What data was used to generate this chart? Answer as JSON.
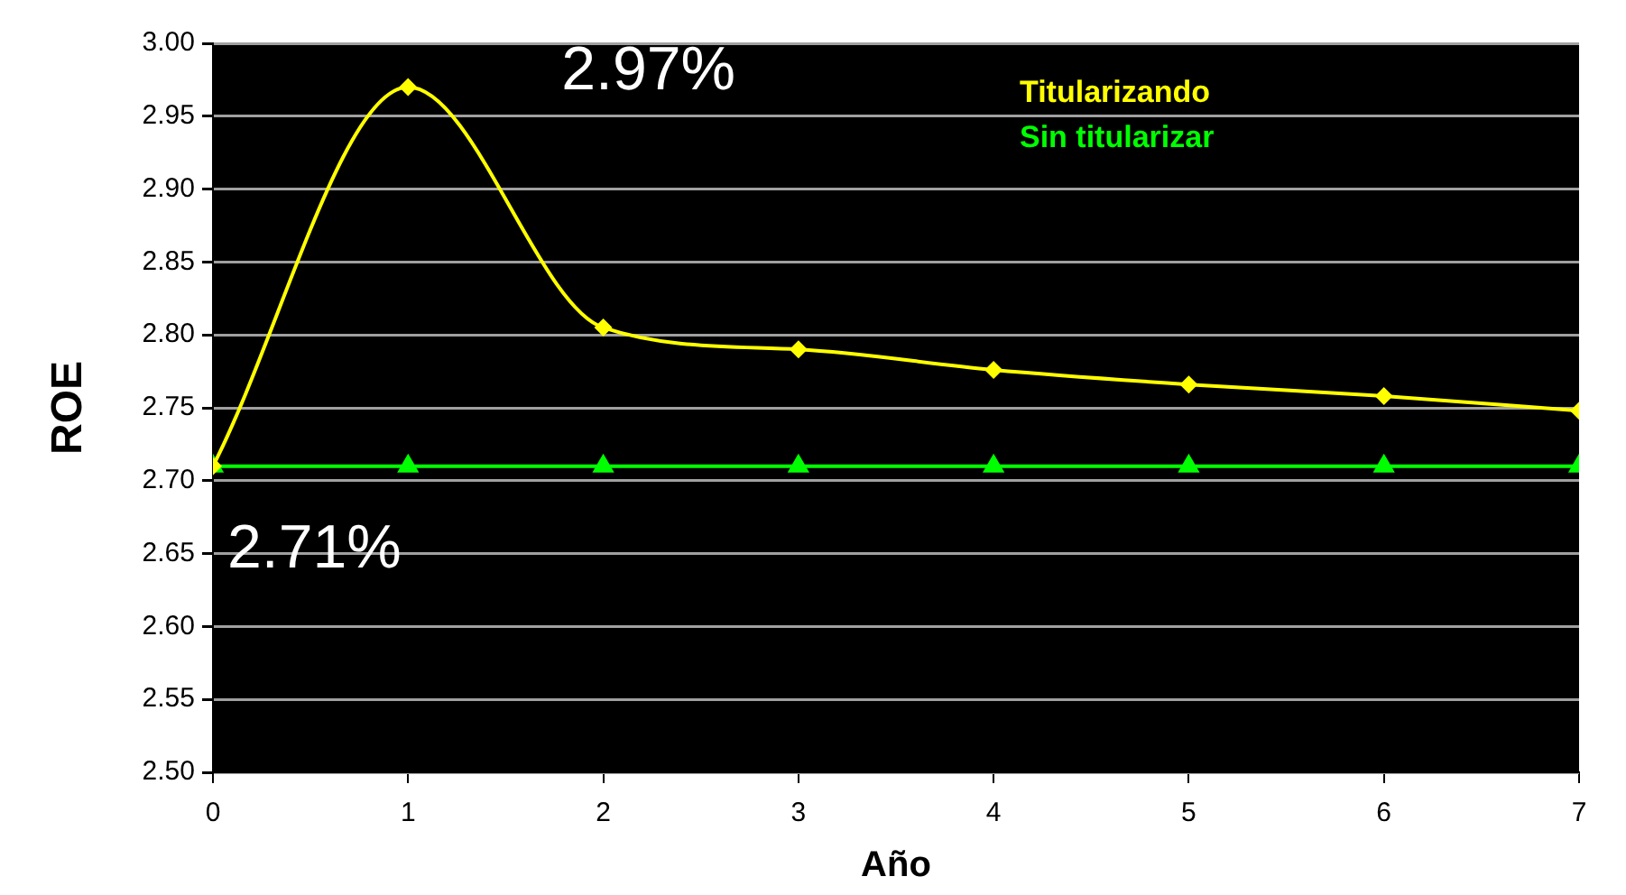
{
  "chart_data": {
    "type": "line",
    "xlabel": "Año",
    "ylabel": "ROE",
    "x": [
      0,
      1,
      2,
      3,
      4,
      5,
      6,
      7
    ],
    "series": [
      {
        "name": "Titularizando",
        "color": "#ffff00",
        "marker": "diamond",
        "values": [
          2.71,
          2.97,
          2.805,
          2.79,
          2.776,
          2.766,
          2.758,
          2.748
        ]
      },
      {
        "name": "Sin titularizar",
        "color": "#00ff00",
        "marker": "triangle",
        "values": [
          2.71,
          2.71,
          2.71,
          2.71,
          2.71,
          2.71,
          2.71,
          2.71
        ]
      }
    ],
    "annotations": [
      {
        "text": "2.97%",
        "x": 1,
        "y": 2.97
      },
      {
        "text": "2.71%",
        "x": 0,
        "y": 2.71
      }
    ],
    "xlim": [
      0,
      7
    ],
    "xticks": [
      0,
      1,
      2,
      3,
      4,
      5,
      6,
      7
    ],
    "ylim": [
      2.5,
      3.0
    ],
    "yticks": [
      {
        "value": 2.5,
        "label": "2.50"
      },
      {
        "value": 2.55,
        "label": "2.55"
      },
      {
        "value": 2.6,
        "label": "2.60"
      },
      {
        "value": 2.65,
        "label": "2.65"
      },
      {
        "value": 2.7,
        "label": "2.70"
      },
      {
        "value": 2.75,
        "label": "2.75"
      },
      {
        "value": 2.8,
        "label": "2.80"
      },
      {
        "value": 2.85,
        "label": "2.85"
      },
      {
        "value": 2.9,
        "label": "2.90"
      },
      {
        "value": 2.95,
        "label": "2.95"
      },
      {
        "value": 3.0,
        "label": "3.00"
      }
    ],
    "grid": "y",
    "legend": "top right"
  }
}
